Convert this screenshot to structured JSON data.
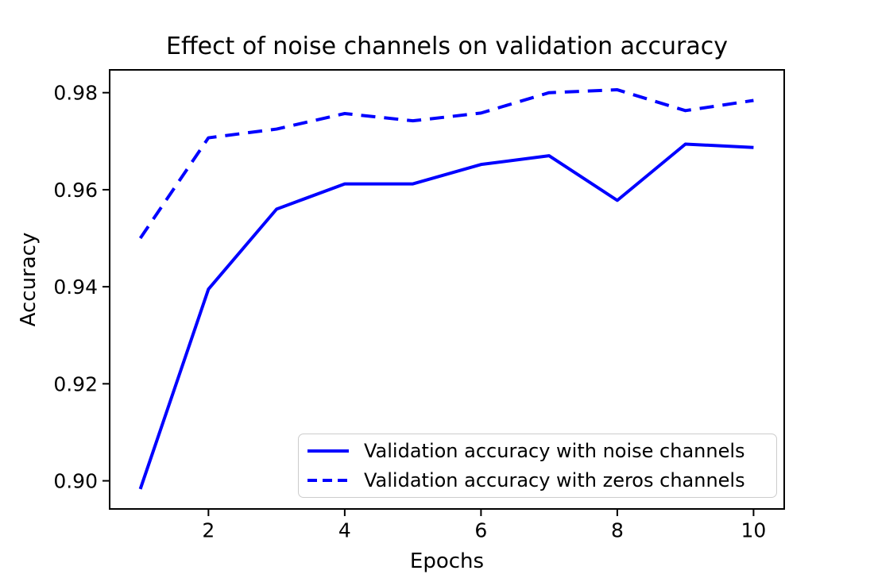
{
  "figure": {
    "background": "#ffffff"
  },
  "chart_data": {
    "type": "line",
    "title": "Effect of noise channels on validation accuracy",
    "xlabel": "Epochs",
    "ylabel": "Accuracy",
    "x": [
      1,
      2,
      3,
      4,
      5,
      6,
      7,
      8,
      9,
      10
    ],
    "series": [
      {
        "name": "Validation accuracy with noise channels",
        "line_style": "solid",
        "color": "#0000ff",
        "values": [
          0.8983,
          0.9395,
          0.956,
          0.9612,
          0.9612,
          0.9652,
          0.967,
          0.9578,
          0.9694,
          0.9687
        ]
      },
      {
        "name": "Validation accuracy with zeros channels",
        "line_style": "dashed",
        "color": "#0000ff",
        "values": [
          0.95,
          0.9707,
          0.9725,
          0.9757,
          0.9742,
          0.9758,
          0.98,
          0.9806,
          0.9763,
          0.9784
        ]
      }
    ],
    "xticks": {
      "values": [
        2,
        4,
        6,
        8,
        10
      ],
      "labels": [
        "2",
        "4",
        "6",
        "8",
        "10"
      ]
    },
    "yticks": {
      "values": [
        0.9,
        0.92,
        0.94,
        0.96,
        0.98
      ],
      "labels": [
        "0.90",
        "0.92",
        "0.94",
        "0.96",
        "0.98"
      ]
    },
    "xlim": [
      0.55,
      10.45
    ],
    "ylim": [
      0.8942,
      0.9847
    ],
    "grid": false,
    "legend_position": "lower right inside axes",
    "axis_color": "#000000",
    "legend_border_color": "#cccccc"
  }
}
